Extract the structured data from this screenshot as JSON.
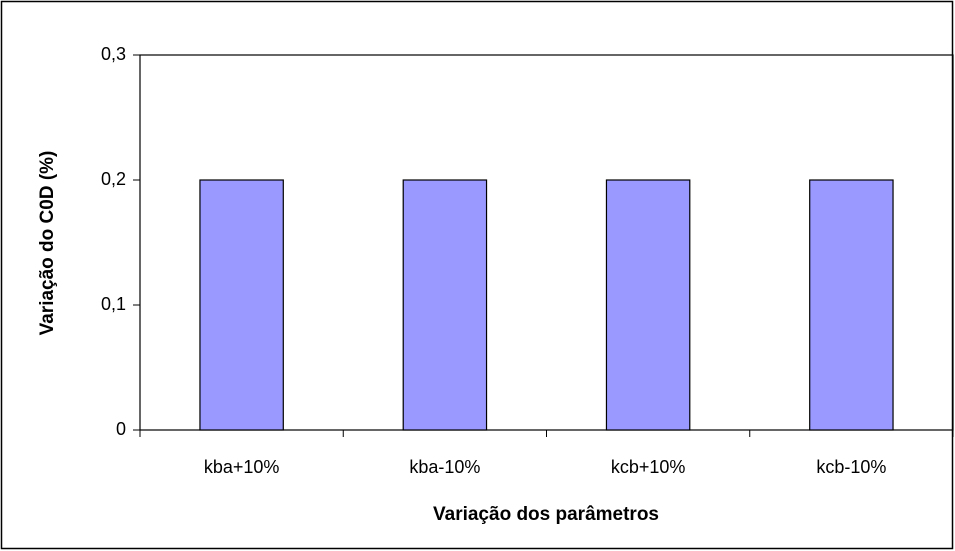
{
  "chart_data": {
    "type": "bar",
    "x_label": "Variação dos parâmetros",
    "y_label": "Variação do C0D (%)",
    "categories": [
      "kba+10%",
      "kba-10%",
      "kcb+10%",
      "kcb-10%"
    ],
    "values": [
      0.2,
      0.2,
      0.2,
      0.2
    ],
    "color": "#9999ff",
    "ylim": [
      0,
      0.3
    ],
    "yticks": [
      0,
      {
        "value": 0.1,
        "label": "0,1"
      },
      {
        "value": 0.2,
        "label": "0,2"
      },
      {
        "value": 0.3,
        "label": "0,3"
      }
    ],
    "grid": false
  }
}
